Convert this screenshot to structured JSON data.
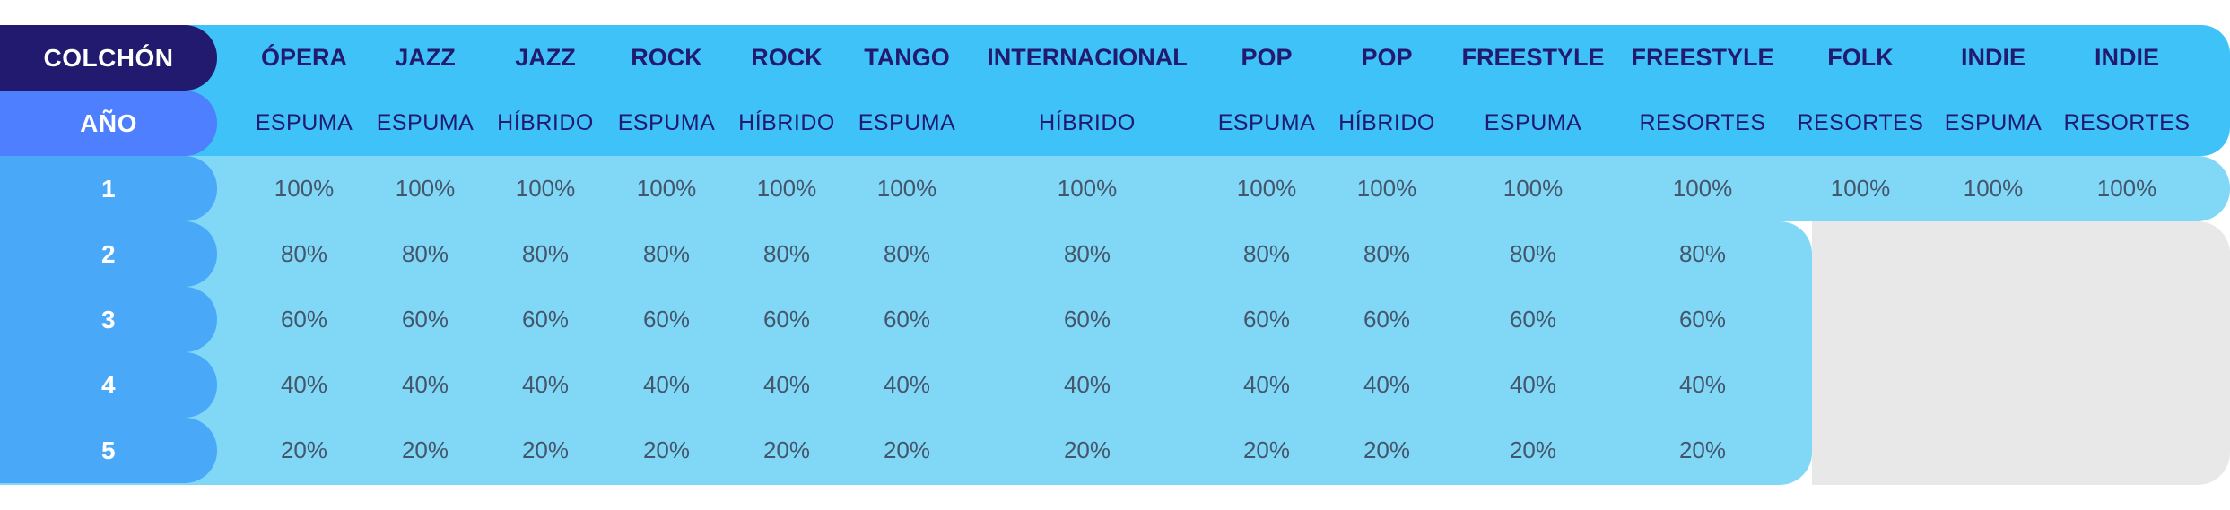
{
  "header_label": "COLCHÓN",
  "type_label": "AÑO",
  "columns": [
    {
      "name": "ÓPERA",
      "type": "ESPUMA"
    },
    {
      "name": "JAZZ",
      "type": "ESPUMA"
    },
    {
      "name": "JAZZ",
      "type": "HÍBRIDO"
    },
    {
      "name": "ROCK",
      "type": "ESPUMA"
    },
    {
      "name": "ROCK",
      "type": "HÍBRIDO"
    },
    {
      "name": "TANGO",
      "type": "ESPUMA"
    },
    {
      "name": "INTERNACIONAL",
      "type": "HÍBRIDO"
    },
    {
      "name": "POP",
      "type": "ESPUMA"
    },
    {
      "name": "POP",
      "type": "HÍBRIDO"
    },
    {
      "name": "FREESTYLE",
      "type": "ESPUMA"
    },
    {
      "name": "FREESTYLE",
      "type": "RESORTES"
    },
    {
      "name": "FOLK",
      "type": "RESORTES"
    },
    {
      "name": "INDIE",
      "type": "ESPUMA"
    },
    {
      "name": "INDIE",
      "type": "RESORTES"
    }
  ],
  "years": [
    "1",
    "2",
    "3",
    "4",
    "5"
  ],
  "values": [
    [
      "100%",
      "100%",
      "100%",
      "100%",
      "100%",
      "100%",
      "100%",
      "100%",
      "100%",
      "100%",
      "100%",
      "100%",
      "100%",
      "100%"
    ],
    [
      "80%",
      "80%",
      "80%",
      "80%",
      "80%",
      "80%",
      "80%",
      "80%",
      "80%",
      "80%",
      "80%",
      "",
      "",
      ""
    ],
    [
      "60%",
      "60%",
      "60%",
      "60%",
      "60%",
      "60%",
      "60%",
      "60%",
      "60%",
      "60%",
      "60%",
      "",
      "",
      ""
    ],
    [
      "40%",
      "40%",
      "40%",
      "40%",
      "40%",
      "40%",
      "40%",
      "40%",
      "40%",
      "40%",
      "40%",
      "",
      "",
      ""
    ],
    [
      "20%",
      "20%",
      "20%",
      "20%",
      "20%",
      "20%",
      "20%",
      "20%",
      "20%",
      "20%",
      "20%",
      "",
      "",
      ""
    ]
  ],
  "colors": {
    "header_band": "#3ec2f7",
    "body_band": "#80d8f6",
    "empty_band": "#e8e8e8",
    "colchon_label": "#211a6f",
    "anio_label": "#4d7ffe",
    "year_label": "#4aa8f8",
    "header_text": "#211a6f",
    "value_text": "#44566b"
  }
}
